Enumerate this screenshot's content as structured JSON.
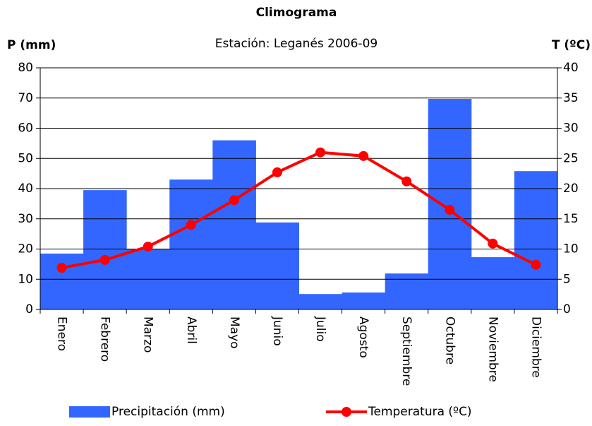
{
  "chart_data": {
    "type": "climogram",
    "title": "Climograma",
    "subtitle": "Estación: Leganés 2006-09",
    "y_label": "P (mm)",
    "y2_label": "T (ºC)",
    "categories": [
      "Enero",
      "Febrero",
      "Marzo",
      "Abril",
      "Mayo",
      "Junio",
      "Julio",
      "Agosto",
      "Septiembre",
      "Octubre",
      "Noviembre",
      "Diciembre"
    ],
    "series": [
      {
        "name": "Precipitación (mm)",
        "color": "#3366ff",
        "kind": "bar",
        "values": [
          18.5,
          39.5,
          20,
          43,
          56,
          28.8,
          5.1,
          5.6,
          11.9,
          69.7,
          17.3,
          45.8
        ]
      },
      {
        "name": "Temperatura (ºC)",
        "color": "#ff0000",
        "kind": "line",
        "axis": "y2",
        "values": [
          6.9,
          8.2,
          10.4,
          14.0,
          18.1,
          22.7,
          26.0,
          25.4,
          21.2,
          16.5,
          10.9,
          7.4
        ]
      }
    ],
    "ylim": [
      0,
      80
    ],
    "yticks": [
      0,
      10,
      20,
      30,
      40,
      50,
      60,
      70,
      80
    ],
    "y2lim": [
      0,
      40
    ],
    "y2ticks": [
      0,
      5,
      10,
      15,
      20,
      25,
      30,
      35,
      40
    ],
    "grid": true
  }
}
